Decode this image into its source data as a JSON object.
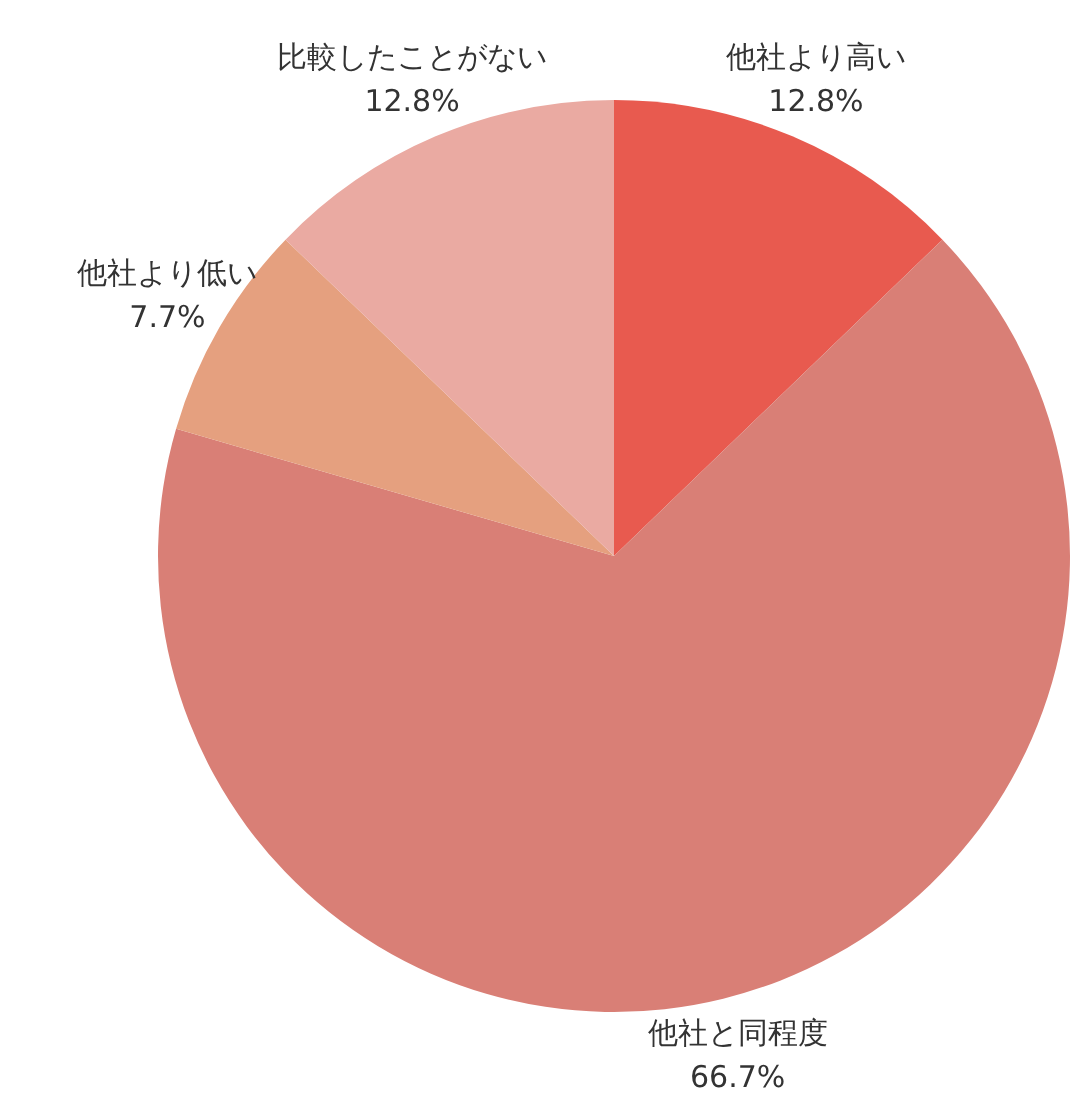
{
  "chart_data": {
    "type": "pie",
    "categories": [
      "他社より高い",
      "他社と同程度",
      "他社より低い",
      "比較したことがない"
    ],
    "values": [
      12.8,
      66.7,
      7.7,
      12.8
    ],
    "value_labels": [
      "12.8%",
      "66.7%",
      "7.7%",
      "12.8%"
    ],
    "colors": [
      "#e85a4f",
      "#d97f76",
      "#e5a07f",
      "#eaaaa2"
    ],
    "legend": false
  }
}
